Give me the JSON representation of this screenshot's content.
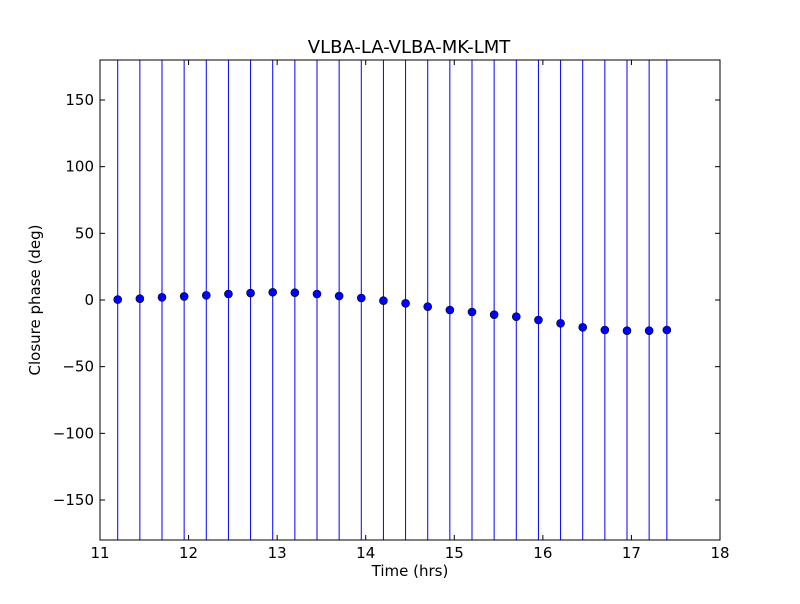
{
  "chart_data": {
    "type": "scatter",
    "title": "VLBA-LA-VLBA-MK-LMT",
    "xlabel": "Time (hrs)",
    "ylabel": "Closure phase (deg)",
    "xlim": [
      11,
      18
    ],
    "ylim": [
      -180,
      180
    ],
    "xticks": [
      11,
      12,
      13,
      14,
      15,
      16,
      17,
      18
    ],
    "xtick_labels": [
      "11",
      "12",
      "13",
      "14",
      "15",
      "16",
      "17",
      "18"
    ],
    "yticks": [
      -150,
      -100,
      -50,
      0,
      50,
      100,
      150
    ],
    "ytick_labels": [
      "−150",
      "−100",
      "−50",
      "0",
      "50",
      "100",
      "150"
    ],
    "grid": false,
    "colors": {
      "points": "#0000ff",
      "error_bars": "#0000ff",
      "axes": "#000000"
    },
    "series": [
      {
        "x": [
          11.2,
          11.45,
          11.7,
          11.95,
          12.2,
          12.45,
          12.7,
          12.95,
          13.2,
          13.45,
          13.7,
          13.95,
          14.2,
          14.45,
          14.7,
          14.95,
          15.2,
          15.45,
          15.7,
          15.95,
          16.2,
          16.45,
          16.7,
          16.95,
          17.2,
          17.4
        ],
        "y": [
          0.3,
          1.0,
          2.0,
          2.7,
          3.5,
          4.5,
          5.2,
          5.8,
          5.5,
          4.5,
          3.0,
          1.5,
          -0.5,
          -2.5,
          -5.0,
          -7.5,
          -9.0,
          -11.0,
          -12.5,
          -15.0,
          -17.5,
          -20.5,
          -22.5,
          -23.0,
          -23.0,
          -22.5
        ],
        "error_bars": "full range of the y-axis"
      }
    ]
  }
}
